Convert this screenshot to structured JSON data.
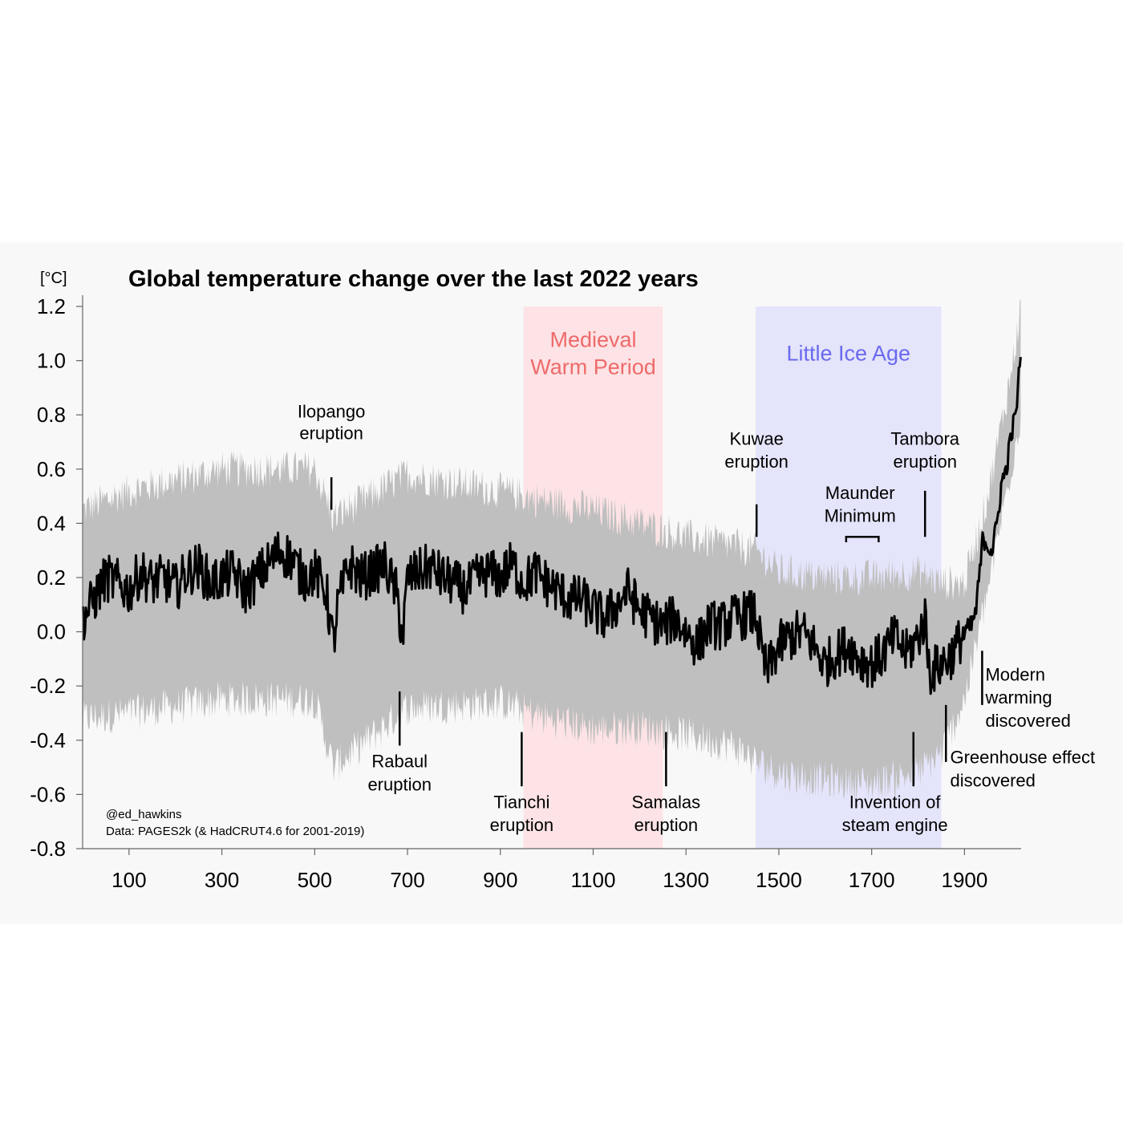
{
  "chart_data": {
    "type": "line",
    "title": "Global temperature change over the last 2022 years",
    "unit_label": "[°C]",
    "xlim": [
      1,
      2022
    ],
    "ylim": [
      -0.8,
      1.25
    ],
    "x_ticks": [
      100,
      300,
      500,
      700,
      900,
      1100,
      1300,
      1500,
      1700,
      1900
    ],
    "y_ticks": [
      {
        "v": 1.2,
        "label": "1.2"
      },
      {
        "v": 1.0,
        "label": "1.0"
      },
      {
        "v": 0.8,
        "label": "0.8"
      },
      {
        "v": 0.6,
        "label": "0.6"
      },
      {
        "v": 0.4,
        "label": "0.4"
      },
      {
        "v": 0.2,
        "label": "0.2"
      },
      {
        "v": 0.0,
        "label": "0.0"
      },
      {
        "v": -0.2,
        "label": "-0.2"
      },
      {
        "v": -0.4,
        "label": "-0.4"
      },
      {
        "v": -0.6,
        "label": "-0.6"
      },
      {
        "v": -0.8,
        "label": "-0.8"
      }
    ],
    "grid": false,
    "series": [
      {
        "role": "median",
        "color": "#000000",
        "x": [
          1,
          25,
          50,
          75,
          100,
          125,
          150,
          175,
          200,
          225,
          250,
          275,
          300,
          325,
          350,
          375,
          400,
          425,
          450,
          475,
          500,
          525,
          540,
          550,
          575,
          600,
          625,
          650,
          675,
          690,
          700,
          725,
          750,
          775,
          800,
          825,
          850,
          875,
          900,
          925,
          950,
          975,
          1000,
          1025,
          1050,
          1075,
          1100,
          1125,
          1150,
          1175,
          1200,
          1225,
          1250,
          1275,
          1300,
          1325,
          1350,
          1375,
          1400,
          1425,
          1450,
          1465,
          1475,
          1500,
          1525,
          1550,
          1575,
          1600,
          1625,
          1650,
          1675,
          1700,
          1725,
          1750,
          1775,
          1800,
          1815,
          1825,
          1850,
          1875,
          1900,
          1915,
          1925,
          1940,
          1950,
          1960,
          1970,
          1980,
          1990,
          2000,
          2010,
          2015,
          2019,
          2022
        ],
        "y": [
          0.05,
          0.12,
          0.2,
          0.18,
          0.15,
          0.22,
          0.18,
          0.2,
          0.16,
          0.22,
          0.24,
          0.18,
          0.2,
          0.22,
          0.15,
          0.2,
          0.25,
          0.3,
          0.27,
          0.2,
          0.22,
          0.15,
          -0.05,
          0.1,
          0.25,
          0.2,
          0.22,
          0.25,
          0.15,
          -0.02,
          0.2,
          0.22,
          0.24,
          0.2,
          0.18,
          0.15,
          0.2,
          0.22,
          0.2,
          0.25,
          0.18,
          0.22,
          0.18,
          0.15,
          0.12,
          0.12,
          0.08,
          0.05,
          0.1,
          0.15,
          0.08,
          0.05,
          0.02,
          0.05,
          0.0,
          -0.05,
          0.03,
          0.02,
          0.05,
          0.06,
          0.07,
          -0.1,
          -0.15,
          -0.05,
          -0.02,
          0.0,
          -0.05,
          -0.12,
          -0.08,
          -0.05,
          -0.1,
          -0.12,
          -0.08,
          -0.02,
          -0.08,
          -0.02,
          0.05,
          -0.15,
          -0.12,
          -0.08,
          0.0,
          0.02,
          0.08,
          0.35,
          0.32,
          0.3,
          0.4,
          0.55,
          0.6,
          0.72,
          0.8,
          0.88,
          1.0,
          1.05
        ]
      },
      {
        "role": "uncertainty-band",
        "color": "#bfbfbf",
        "x": [
          1,
          100,
          300,
          500,
          540,
          700,
          900,
          1000,
          1100,
          1200,
          1300,
          1400,
          1450,
          1500,
          1600,
          1700,
          1800,
          1850,
          1900,
          1950,
          2000,
          2022
        ],
        "upper": [
          0.45,
          0.52,
          0.6,
          0.6,
          0.42,
          0.58,
          0.52,
          0.48,
          0.45,
          0.4,
          0.35,
          0.32,
          0.3,
          0.22,
          0.2,
          0.2,
          0.22,
          0.18,
          0.18,
          0.5,
          0.95,
          1.2
        ],
        "lower": [
          -0.32,
          -0.3,
          -0.25,
          -0.25,
          -0.5,
          -0.28,
          -0.26,
          -0.32,
          -0.36,
          -0.35,
          -0.38,
          -0.42,
          -0.48,
          -0.52,
          -0.55,
          -0.56,
          -0.52,
          -0.45,
          -0.25,
          0.15,
          0.6,
          0.8
        ]
      }
    ],
    "periods": [
      {
        "name": "medieval",
        "lines": [
          "Medieval",
          "Warm Period"
        ],
        "x_start": 950,
        "x_end": 1250,
        "fill": "#fde3e5",
        "text_color": "#ee6a6a"
      },
      {
        "name": "little-ice-age",
        "lines": [
          "Little Ice Age"
        ],
        "x_start": 1450,
        "x_end": 1850,
        "fill": "#e4e4fb",
        "text_color": "#6a6aee"
      }
    ],
    "annotations": [
      {
        "name": "ilopango",
        "lines": [
          "Ilopango",
          "eruption"
        ],
        "x": 536,
        "anchor": "middle",
        "line": [
          0.45,
          0.57
        ],
        "text_y": [
          0.79,
          0.71
        ]
      },
      {
        "name": "rabaul",
        "lines": [
          "Rabaul",
          "eruption"
        ],
        "x": 683,
        "anchor": "middle",
        "line": [
          -0.42,
          -0.22
        ],
        "text_y": [
          -0.5,
          -0.585
        ]
      },
      {
        "name": "tianchi",
        "lines": [
          "Tianchi",
          "eruption"
        ],
        "x": 946,
        "anchor": "middle",
        "line": [
          -0.57,
          -0.37
        ],
        "text_y": [
          -0.65,
          -0.735
        ]
      },
      {
        "name": "samalas",
        "lines": [
          "Samalas",
          "eruption"
        ],
        "x": 1257,
        "anchor": "middle",
        "line": [
          -0.57,
          -0.37
        ],
        "text_y": [
          -0.65,
          -0.735
        ]
      },
      {
        "name": "kuwae",
        "lines": [
          "Kuwae",
          "eruption"
        ],
        "x": 1452,
        "anchor": "middle",
        "line": [
          0.35,
          0.47
        ],
        "text_y": [
          0.69,
          0.605
        ]
      },
      {
        "name": "tambora",
        "lines": [
          "Tambora",
          "eruption"
        ],
        "x": 1815,
        "anchor": "middle",
        "line": [
          0.35,
          0.52
        ],
        "text_y": [
          0.69,
          0.605
        ]
      },
      {
        "name": "maunder",
        "lines": [
          "Maunder",
          "Minimum"
        ],
        "x": 1675,
        "anchor": "middle",
        "text_y": [
          0.49,
          0.405
        ],
        "bracket": [
          1645,
          1715,
          0.33,
          0.35
        ]
      },
      {
        "name": "steam-engine",
        "lines": [
          "Invention of",
          "steam engine"
        ],
        "x": 1790,
        "text_x": 1750,
        "anchor": "middle",
        "line": [
          -0.57,
          -0.37
        ],
        "text_y": [
          -0.65,
          -0.735
        ]
      },
      {
        "name": "greenhouse",
        "lines": [
          "Greenhouse effect",
          "discovered"
        ],
        "x": 1860,
        "text_x": 1869,
        "anchor": "start",
        "line": [
          -0.48,
          -0.27
        ],
        "text_y": [
          -0.485,
          -0.57
        ]
      },
      {
        "name": "modern-warming",
        "lines": [
          "Modern",
          "warming",
          "discovered"
        ],
        "x": 1938,
        "text_x": 1945,
        "anchor": "start",
        "line": [
          -0.27,
          -0.07
        ],
        "text_y": [
          -0.18,
          -0.265,
          -0.35
        ]
      }
    ]
  },
  "credit": {
    "author": "@ed_hawkins",
    "source": "Data: PAGES2k (& HadCRUT4.6 for 2001-2019)"
  }
}
